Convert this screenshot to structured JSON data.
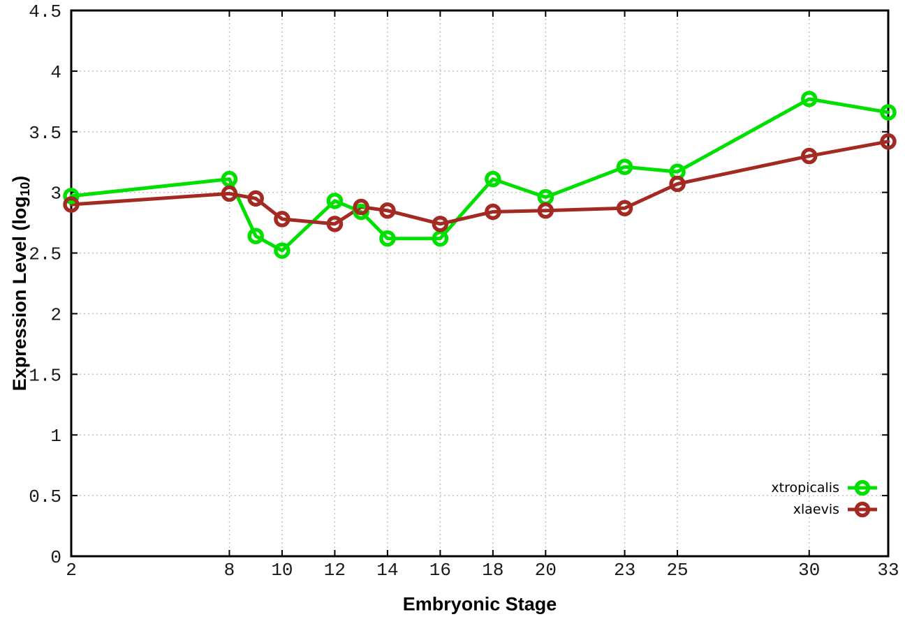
{
  "figure": {
    "background": "#ffffff",
    "border_color": "#000000",
    "grid_color": "#bfbfbf",
    "ylabel_main": "Expression Level (log",
    "ylabel_sub": "10",
    "ylabel_end": ")",
    "xlabel": "Embryonic Stage"
  },
  "chart_data": {
    "type": "line",
    "title": "",
    "xlabel": "Embryonic Stage",
    "ylabel": "Expression Level (log10)",
    "x": [
      2,
      8,
      9,
      10,
      12,
      13,
      14,
      16,
      18,
      20,
      23,
      25,
      30,
      33
    ],
    "series": [
      {
        "name": "xtropicalis",
        "color": "#00e000",
        "values": [
          2.97,
          3.11,
          2.64,
          2.52,
          2.93,
          2.84,
          2.62,
          2.62,
          3.11,
          2.96,
          3.21,
          3.17,
          3.77,
          3.66
        ]
      },
      {
        "name": "xlaevis",
        "color": "#a32a22",
        "values": [
          2.9,
          2.99,
          2.95,
          2.78,
          2.74,
          2.88,
          2.85,
          2.74,
          2.84,
          2.85,
          2.87,
          3.07,
          3.3,
          3.42
        ]
      }
    ],
    "xticks": [
      2,
      8,
      10,
      12,
      14,
      16,
      18,
      20,
      23,
      25,
      30,
      33
    ],
    "yticks": [
      0,
      0.5,
      1,
      1.5,
      2,
      2.5,
      3,
      3.5,
      4,
      4.5
    ],
    "xlim": [
      2,
      33
    ],
    "ylim": [
      0,
      4.5
    ],
    "grid": true,
    "legend_position": "bottom-right",
    "marker": "open-circle"
  }
}
